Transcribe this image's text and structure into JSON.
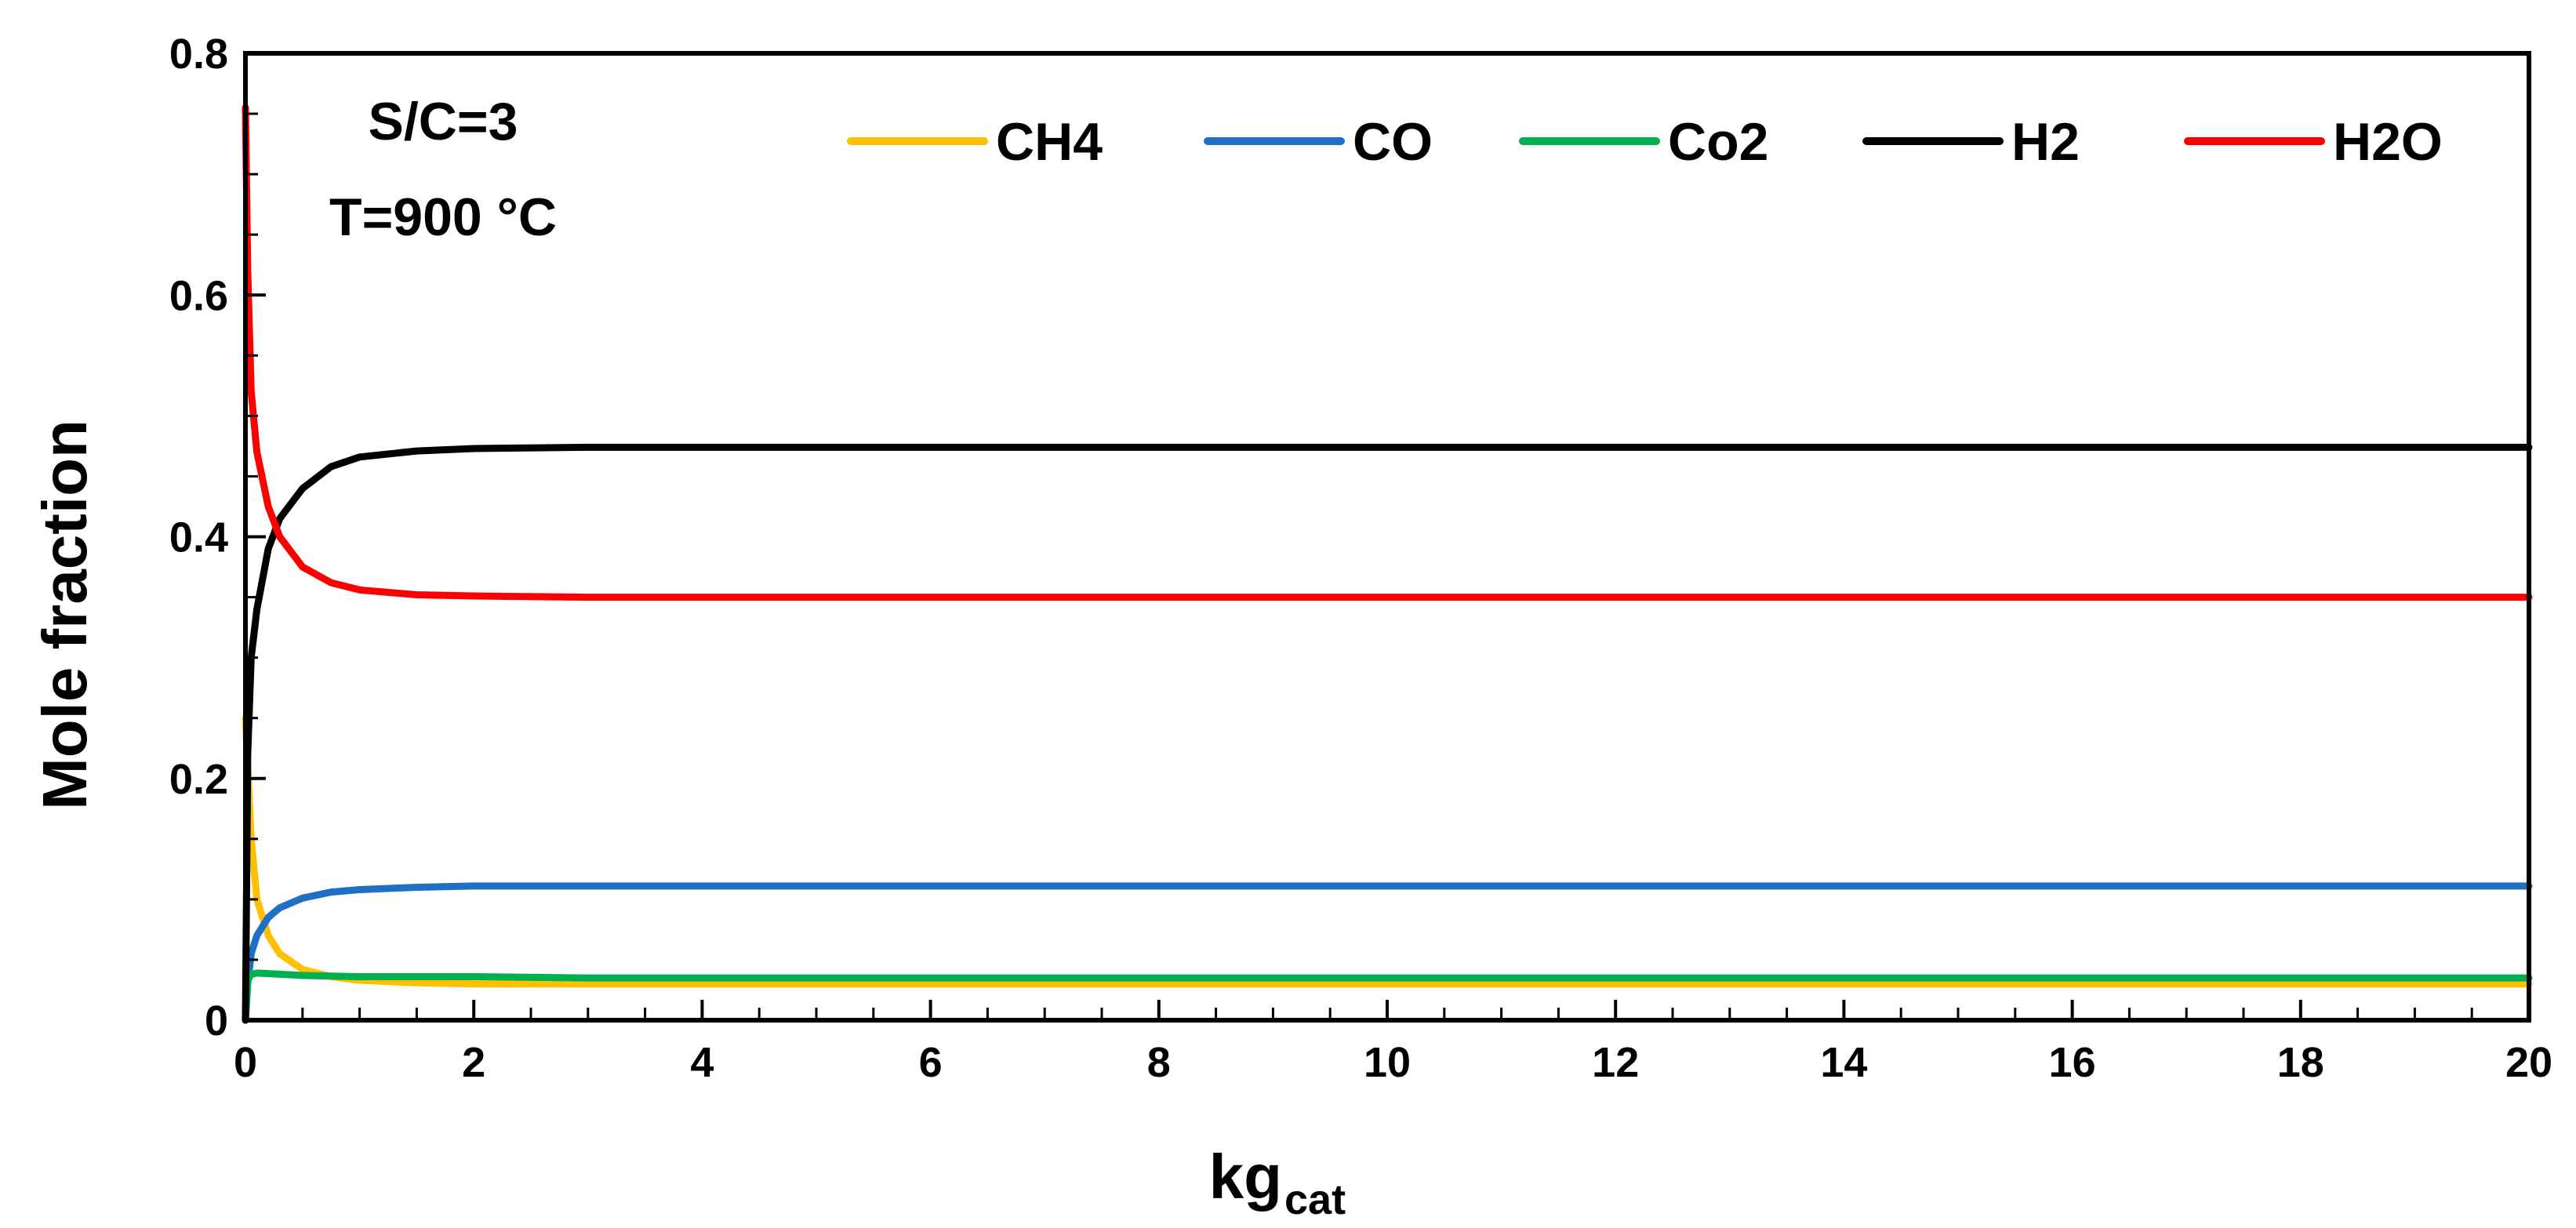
{
  "chart_data": {
    "type": "line",
    "xlabel": "kg",
    "xlabel_sub": "cat",
    "ylabel": "Mole fraction",
    "xlim": [
      0,
      20
    ],
    "ylim": [
      0,
      0.8
    ],
    "x_ticks": [
      0,
      2,
      4,
      6,
      8,
      10,
      12,
      14,
      16,
      18,
      20
    ],
    "y_ticks": [
      0,
      0.2,
      0.4,
      0.6,
      0.8
    ],
    "y_tick_labels": [
      "0",
      "0.2",
      "0.4",
      "0.6",
      "0.8"
    ],
    "annotations": [
      "S/C=3",
      "T=900 °C"
    ],
    "legend_position": "top-right",
    "grid": false,
    "series": [
      {
        "name": "CH4",
        "color": "#FFC000",
        "x": [
          0,
          0.05,
          0.1,
          0.2,
          0.3,
          0.5,
          0.75,
          1,
          1.5,
          2,
          3,
          5,
          10,
          20
        ],
        "y": [
          0.25,
          0.15,
          0.1,
          0.07,
          0.055,
          0.042,
          0.036,
          0.033,
          0.031,
          0.03,
          0.03,
          0.03,
          0.03,
          0.03
        ]
      },
      {
        "name": "CO",
        "color": "#1F6FC5",
        "x": [
          0,
          0.02,
          0.05,
          0.1,
          0.2,
          0.3,
          0.5,
          0.75,
          1,
          1.5,
          2,
          3,
          5,
          10,
          20
        ],
        "y": [
          0,
          0.03,
          0.055,
          0.07,
          0.085,
          0.093,
          0.101,
          0.106,
          0.108,
          0.11,
          0.111,
          0.111,
          0.111,
          0.111,
          0.111
        ]
      },
      {
        "name": "Co2",
        "color": "#00B050",
        "x": [
          0,
          0.02,
          0.05,
          0.1,
          0.3,
          0.5,
          1,
          2,
          3,
          5,
          10,
          20
        ],
        "y": [
          0,
          0.033,
          0.038,
          0.039,
          0.038,
          0.037,
          0.036,
          0.036,
          0.035,
          0.035,
          0.035,
          0.035
        ]
      },
      {
        "name": "H2",
        "color": "#000000",
        "x": [
          0,
          0.02,
          0.05,
          0.1,
          0.2,
          0.3,
          0.5,
          0.75,
          1,
          1.5,
          2,
          3,
          5,
          10,
          20
        ],
        "y": [
          0,
          0.22,
          0.3,
          0.34,
          0.39,
          0.415,
          0.44,
          0.458,
          0.466,
          0.471,
          0.473,
          0.474,
          0.474,
          0.474,
          0.474
        ]
      },
      {
        "name": "H2O",
        "color": "#FF0000",
        "x": [
          0,
          0.02,
          0.05,
          0.1,
          0.2,
          0.3,
          0.5,
          0.75,
          1,
          1.5,
          2,
          3,
          5,
          10,
          20
        ],
        "y": [
          0.755,
          0.62,
          0.52,
          0.47,
          0.425,
          0.4,
          0.375,
          0.362,
          0.356,
          0.352,
          0.351,
          0.35,
          0.35,
          0.35,
          0.35
        ]
      }
    ]
  }
}
